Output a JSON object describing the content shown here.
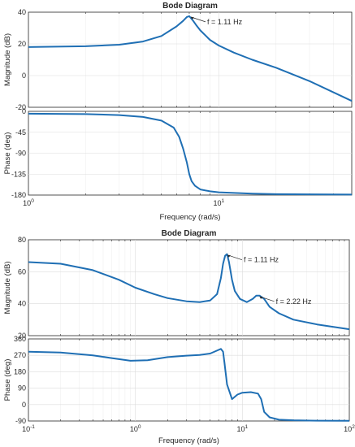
{
  "chart_data": [
    {
      "type": "line",
      "title": "Bode Diagram",
      "xlabel": "Frequency  (rad/s)",
      "x_scale": "log",
      "xlim": [
        1,
        50
      ],
      "x_ticks": [
        {
          "value": 1,
          "base": "10",
          "exp": "0"
        },
        {
          "value": 10,
          "base": "10",
          "exp": "1"
        }
      ],
      "grid": true,
      "panels": [
        {
          "name": "magnitude",
          "ylabel": "Magnitude (dB)",
          "ylim": [
            -20,
            40
          ],
          "y_ticks": [
            -20,
            0,
            20,
            40
          ],
          "series": [
            {
              "x": [
                1,
                2,
                3,
                4,
                5,
                6,
                6.5,
                6.8,
                7.0,
                7.3,
                7.6,
                8,
                9,
                10,
                12,
                15,
                20,
                30,
                50
              ],
              "y": [
                18,
                18.5,
                19.5,
                21.5,
                25,
                31,
                34.5,
                37,
                37.5,
                35,
                32,
                28.5,
                22.5,
                19,
                14.5,
                10,
                5,
                -3.5,
                -16
              ]
            }
          ],
          "annotations": [
            {
              "text": "f = 1.11 Hz",
              "x": 7.0,
              "y": 37.5
            }
          ]
        },
        {
          "name": "phase",
          "ylabel": "Phase (deg)",
          "ylim": [
            -180,
            0
          ],
          "y_ticks": [
            0,
            -45,
            -90,
            -135,
            -180
          ],
          "series": [
            {
              "x": [
                1,
                2,
                3,
                4,
                5,
                5.8,
                6.2,
                6.5,
                6.8,
                7.0,
                7.2,
                7.5,
                8,
                9,
                10,
                15,
                20,
                30,
                50
              ],
              "y": [
                -5,
                -6,
                -8,
                -12,
                -20,
                -35,
                -55,
                -80,
                -110,
                -135,
                -150,
                -160,
                -168,
                -172,
                -174,
                -177,
                -178,
                -178.5,
                -179
              ]
            }
          ]
        }
      ]
    },
    {
      "type": "line",
      "title": "Bode Diagram",
      "xlabel": "Frequency  (rad/s)",
      "x_scale": "log",
      "xlim": [
        0.1,
        100
      ],
      "x_ticks": [
        {
          "value": 0.1,
          "base": "10",
          "exp": "-1"
        },
        {
          "value": 1,
          "base": "10",
          "exp": "0"
        },
        {
          "value": 10,
          "base": "10",
          "exp": "1"
        },
        {
          "value": 100,
          "base": "10",
          "exp": "2"
        }
      ],
      "grid": true,
      "panels": [
        {
          "name": "magnitude",
          "ylabel": "Magnitude (dB)",
          "ylim": [
            20,
            80
          ],
          "y_ticks": [
            20,
            40,
            60,
            80
          ],
          "series": [
            {
              "x": [
                0.1,
                0.2,
                0.4,
                0.7,
                1,
                1.5,
                2,
                3,
                4,
                5,
                5.8,
                6.3,
                6.6,
                6.9,
                7.2,
                7.5,
                8.0,
                8.5,
                9.5,
                11,
                12.5,
                13.5,
                14.5,
                16,
                18,
                22,
                30,
                50,
                100
              ],
              "y": [
                66,
                65,
                61,
                55,
                50,
                46,
                43.5,
                41.5,
                41,
                42,
                46,
                56,
                65,
                70,
                71,
                66,
                55,
                48,
                43,
                41,
                43,
                45,
                45,
                43,
                38,
                34,
                30,
                27,
                24
              ]
            }
          ],
          "annotations": [
            {
              "text": "f = 1.11 Hz",
              "x": 7.0,
              "y": 71
            },
            {
              "text": "f = 2.22 Hz",
              "x": 14,
              "y": 45
            }
          ]
        },
        {
          "name": "phase",
          "ylabel": "Phase (deg)",
          "ylim": [
            -90,
            360
          ],
          "y_ticks": [
            -90,
            0,
            90,
            180,
            270,
            360
          ],
          "series": [
            {
              "x": [
                0.1,
                0.2,
                0.4,
                0.6,
                0.9,
                1.3,
                2,
                3,
                4,
                5,
                6,
                6.3,
                6.6,
                6.8,
                7.2,
                8,
                9,
                10,
                12,
                14,
                15,
                16,
                18,
                22,
                30,
                50,
                100
              ],
              "y": [
                290,
                285,
                270,
                255,
                240,
                243,
                260,
                268,
                272,
                280,
                300,
                305,
                290,
                230,
                110,
                30,
                55,
                65,
                68,
                60,
                30,
                -40,
                -70,
                -83,
                -86,
                -88,
                -89
              ]
            }
          ]
        }
      ]
    }
  ]
}
